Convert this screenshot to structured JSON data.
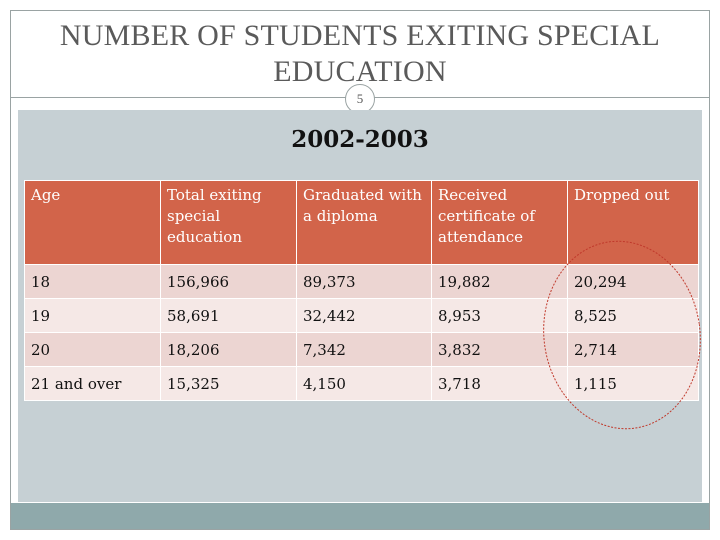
{
  "slide": {
    "title": "NUMBER OF STUDENTS EXITING SPECIAL EDUCATION",
    "slide_number": "5",
    "subtitle": "2002-2003"
  },
  "table": {
    "headers": [
      "Age",
      "Total exiting special education",
      "Graduated with a diploma",
      "Received certificate of attendance",
      "Dropped out"
    ],
    "rows": [
      [
        "18",
        "156,966",
        "89,373",
        "19,882",
        "20,294"
      ],
      [
        "19",
        "58,691",
        "32,442",
        "8,953",
        "8,525"
      ],
      [
        "20",
        "18,206",
        "7,342",
        "3,832",
        "2,714"
      ],
      [
        "21 and over",
        "15,325",
        "4,150",
        "3,718",
        "1,115"
      ]
    ]
  },
  "colors": {
    "header_bg": "#d2644a",
    "row_odd_bg": "#ecd5d2",
    "row_even_bg": "#f5e8e6",
    "content_bg": "#c6d0d4",
    "bottom_bar": "#8fa9ab",
    "annotation_circle": "#c0392b"
  }
}
